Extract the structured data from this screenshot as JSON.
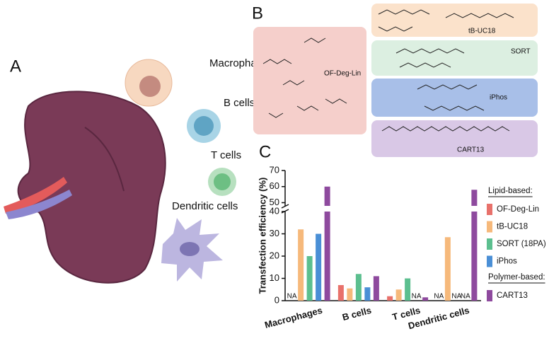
{
  "panel_a": {
    "letter": "A",
    "cells": [
      "Macrophages",
      "B cells",
      "T cells",
      "Dendritic cells"
    ]
  },
  "panel_b": {
    "letter": "B",
    "molecules": [
      "OF-Deg-Lin",
      "tB-UC18",
      "SORT",
      "iPhos",
      "CART13"
    ]
  },
  "chart_data": {
    "type": "bar",
    "letter": "C",
    "y_label": "Transfection efficiency (%)",
    "categories": [
      "Macrophages",
      "B cells",
      "T cells",
      "Dendritic cells"
    ],
    "series": [
      {
        "name": "OF-Deg-Lin",
        "color": "#e8716b",
        "values": [
          null,
          7,
          2,
          null
        ],
        "value_labels": [
          "NA",
          null,
          null,
          "NA"
        ]
      },
      {
        "name": "tB-UC18",
        "color": "#f6b97b",
        "values": [
          32,
          5.5,
          5,
          28.5
        ]
      },
      {
        "name": "SORT (18PA)",
        "color": "#5cbf8f",
        "values": [
          20,
          12,
          10,
          null
        ],
        "value_labels": [
          null,
          null,
          null,
          "NA"
        ]
      },
      {
        "name": "iPhos",
        "color": "#4a8fd6",
        "values": [
          30,
          6,
          null,
          null
        ],
        "value_labels": [
          null,
          null,
          "NA",
          "NA"
        ]
      },
      {
        "name": "CART13",
        "color": "#8e4a9e",
        "values": [
          60,
          11,
          1.5,
          58
        ]
      }
    ],
    "legend_groups": [
      {
        "title": "Lipid-based:",
        "series": [
          0,
          1,
          2,
          3
        ]
      },
      {
        "title": "Polymer-based:",
        "series": [
          4
        ]
      }
    ],
    "ylim": [
      0,
      70
    ],
    "ybreak": [
      40,
      48
    ],
    "yticks": [
      0,
      10,
      20,
      30,
      40,
      50,
      60,
      70
    ]
  }
}
